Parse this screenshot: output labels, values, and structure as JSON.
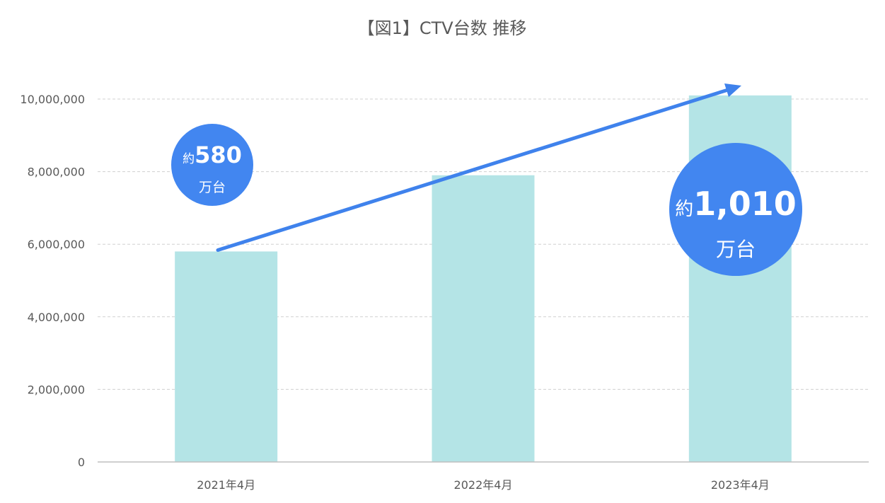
{
  "chart_data": {
    "type": "bar",
    "title": "【図1】CTV台数 推移",
    "categories": [
      "2021年4月",
      "2022年4月",
      "2023年4月"
    ],
    "values": [
      5800000,
      7900000,
      10100000
    ],
    "ylim": [
      0,
      10000000
    ],
    "yticks": [
      0,
      2000000,
      4000000,
      6000000,
      8000000,
      10000000
    ],
    "ytick_labels": [
      "0",
      "2,000,000",
      "4,000,000",
      "6,000,000",
      "8,000,000",
      "10,000,000"
    ],
    "grid": true,
    "annotations": [
      {
        "prefix": "約",
        "value": "580",
        "unit": "万台"
      },
      {
        "prefix": "約",
        "value": "1,010",
        "unit": "万台"
      }
    ]
  },
  "colors": {
    "bar": "#b4e4e6",
    "arrow": "#3f82ec",
    "callout": "#4286f0",
    "grid": "#d0d0d0",
    "text": "#595959"
  }
}
